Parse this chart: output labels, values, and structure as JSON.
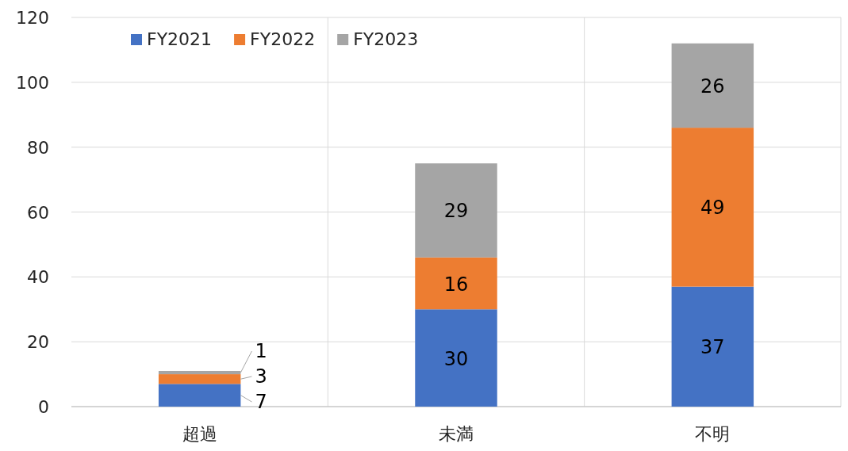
{
  "chart_data": {
    "type": "bar",
    "stacked": true,
    "categories": [
      "超過",
      "未満",
      "不明"
    ],
    "series": [
      {
        "name": "FY2021",
        "color": "#4472c4",
        "values": [
          7,
          30,
          37
        ]
      },
      {
        "name": "FY2022",
        "color": "#ed7d31",
        "values": [
          3,
          16,
          49
        ]
      },
      {
        "name": "FY2023",
        "color": "#a5a5a5",
        "values": [
          1,
          29,
          26
        ]
      }
    ],
    "ylim": [
      0,
      120
    ],
    "yticks": [
      0,
      20,
      40,
      60,
      80,
      100,
      120
    ],
    "grid": true,
    "legend": "top left",
    "data_labels": true
  }
}
